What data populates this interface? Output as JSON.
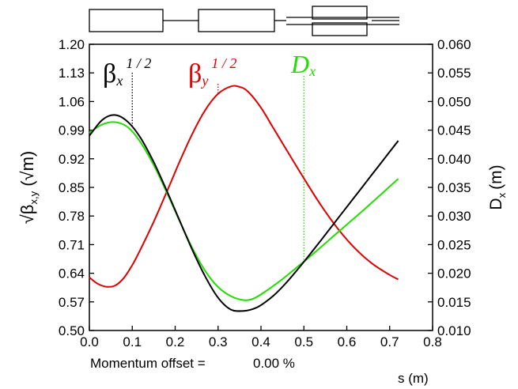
{
  "chart_data": {
    "type": "line",
    "xlabel": "s (m)",
    "ylabel_left_main": "β",
    "ylabel_left_sub": "x,y",
    "ylabel_left_unit": "m",
    "ylabel_right_main": "D",
    "ylabel_right_sub": "x",
    "ylabel_right_unit": "(m)",
    "xlim": [
      0.0,
      0.8
    ],
    "ylim_left": [
      0.5,
      1.2
    ],
    "ylim_right": [
      0.01,
      0.06
    ],
    "x_ticks": [
      "0.0",
      "0.1",
      "0.2",
      "0.3",
      "0.4",
      "0.5",
      "0.6",
      "0.7",
      "0.8"
    ],
    "y_left_ticks": [
      "0.50",
      "0.57",
      "0.64",
      "0.71",
      "0.78",
      "0.85",
      "0.92",
      "0.99",
      "1.06",
      "1.13",
      "1.20"
    ],
    "y_right_ticks": [
      "0.010",
      "0.015",
      "0.020",
      "0.025",
      "0.030",
      "0.035",
      "0.040",
      "0.045",
      "0.050",
      "0.055",
      "0.060"
    ],
    "annotation": {
      "label": "Momentum offset =",
      "value": "0.00 %"
    },
    "series": [
      {
        "name": "βx1/2",
        "axis": "left",
        "color": "#000000",
        "x": [
          0.0,
          0.03,
          0.06,
          0.09,
          0.12,
          0.15,
          0.18,
          0.21,
          0.24,
          0.27,
          0.3,
          0.33,
          0.36,
          0.38,
          0.4,
          0.43,
          0.46,
          0.5,
          0.54,
          0.58,
          0.62,
          0.66,
          0.7,
          0.72
        ],
        "y": [
          0.976,
          1.015,
          1.027,
          1.01,
          0.97,
          0.912,
          0.843,
          0.77,
          0.697,
          0.632,
          0.58,
          0.551,
          0.548,
          0.552,
          0.562,
          0.586,
          0.618,
          0.668,
          0.721,
          0.775,
          0.829,
          0.883,
          0.937,
          0.964
        ]
      },
      {
        "name": "βy1/2",
        "axis": "left",
        "color": "#e00000",
        "x": [
          0.0,
          0.02,
          0.04,
          0.06,
          0.08,
          0.1,
          0.12,
          0.15,
          0.18,
          0.21,
          0.24,
          0.27,
          0.3,
          0.33,
          0.35,
          0.37,
          0.4,
          0.43,
          0.46,
          0.5,
          0.54,
          0.58,
          0.62,
          0.66,
          0.7,
          0.72
        ],
        "y": [
          0.63,
          0.614,
          0.607,
          0.61,
          0.628,
          0.66,
          0.7,
          0.766,
          0.838,
          0.912,
          0.981,
          1.039,
          1.079,
          1.097,
          1.096,
          1.084,
          1.045,
          0.993,
          0.941,
          0.872,
          0.806,
          0.748,
          0.7,
          0.663,
          0.636,
          0.625
        ]
      },
      {
        "name": "Dx",
        "axis": "right",
        "color": "#22dd00",
        "x": [
          0.0,
          0.03,
          0.06,
          0.09,
          0.12,
          0.15,
          0.18,
          0.21,
          0.24,
          0.27,
          0.3,
          0.33,
          0.36,
          0.38,
          0.4,
          0.44,
          0.48,
          0.52,
          0.56,
          0.6,
          0.64,
          0.68,
          0.72
        ],
        "y": [
          0.0445,
          0.046,
          0.0464,
          0.0455,
          0.0428,
          0.0389,
          0.0342,
          0.0292,
          0.0244,
          0.0204,
          0.0176,
          0.016,
          0.0153,
          0.0155,
          0.0163,
          0.0184,
          0.0208,
          0.0233,
          0.0259,
          0.0285,
          0.0311,
          0.0338,
          0.0365
        ]
      }
    ],
    "markers": [
      {
        "series": "βx1/2",
        "x": 0.1,
        "color": "#000000"
      },
      {
        "series": "βy1/2",
        "x": 0.3,
        "color": "#e00000"
      },
      {
        "series": "Dx",
        "x": 0.5,
        "color": "#22dd00"
      }
    ],
    "labels": [
      {
        "main": "β",
        "sub": "x",
        "sup": "1 / 2",
        "color": "#000000"
      },
      {
        "main": "β",
        "sub": "y",
        "sup": "1 / 2",
        "color": "#e00000"
      },
      {
        "main": "D",
        "sub": "x",
        "sup": "",
        "color": "#22dd00"
      }
    ]
  }
}
